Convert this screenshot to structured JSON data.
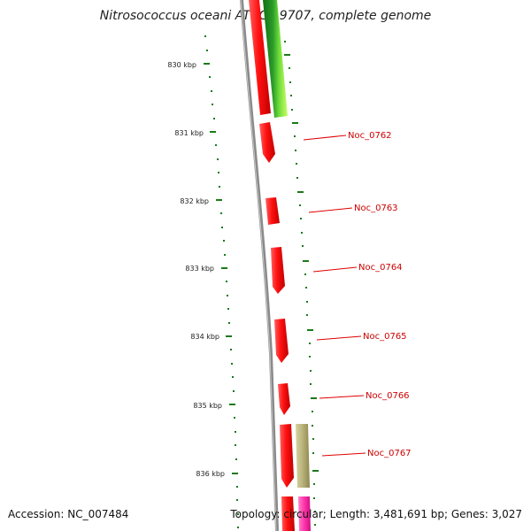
{
  "title": "Nitrosococcus oceani ATCC 19707, complete genome",
  "accession_text": "Accession: NC_007484",
  "topology_text": "Topology: circular; Length: 3,481,691 bp; Genes: 3,027",
  "colors": {
    "backbone": "#8a8a8a",
    "tick": "#1a7a1a",
    "gene_red": "#ff1010",
    "gene_olive": "#b8b27a",
    "gene_pink": "#ff33aa",
    "gene_green_dark": "#1e8a1e",
    "gene_green_light": "#aaff44",
    "label_line": "#e00000",
    "label_text": "#cc0000"
  },
  "kbp_ticks": [
    "830 kbp",
    "831 kbp",
    "832 kbp",
    "833 kbp",
    "834 kbp",
    "835 kbp",
    "836 kbp"
  ],
  "genes": [
    "Noc_0762",
    "Noc_0763",
    "Noc_0764",
    "Noc_0765",
    "Noc_0766",
    "Noc_0767"
  ]
}
